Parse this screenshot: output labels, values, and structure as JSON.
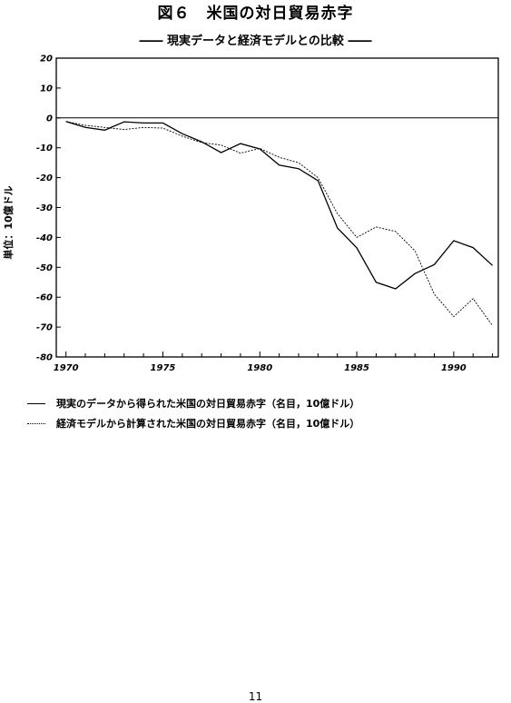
{
  "title": "図６　米国の対日貿易赤字",
  "subtitle": "―― 現実データと経済モデルとの比較 ――",
  "page_number": "11",
  "chart_data": {
    "type": "line",
    "ylabel": "単位：10億ドル",
    "ylim": [
      -80,
      20
    ],
    "yticks": [
      20,
      10,
      0,
      -10,
      -20,
      -30,
      -40,
      -50,
      -60,
      -70,
      -80
    ],
    "xlim": [
      1969.5,
      1992.3
    ],
    "xticks": [
      1970,
      1975,
      1980,
      1985,
      1990
    ],
    "zero_line": true,
    "grid": false,
    "legend": "bottom",
    "x": [
      1970,
      1971,
      1972,
      1973,
      1974,
      1975,
      1976,
      1977,
      1978,
      1979,
      1980,
      1981,
      1982,
      1983,
      1984,
      1985,
      1986,
      1987,
      1988,
      1989,
      1990,
      1991,
      1992
    ],
    "series": [
      {
        "name": "現実のデータから得られた米国の対日貿易赤字（名目，10億ドル）",
        "style": "solid",
        "values": [
          -1.2,
          -3.2,
          -4.1,
          -1.3,
          -1.7,
          -1.7,
          -5.3,
          -8.0,
          -11.6,
          -8.6,
          -10.4,
          -15.8,
          -17.0,
          -21.0,
          -36.8,
          -43.5,
          -55.0,
          -57.2,
          -52.1,
          -49.1,
          -41.1,
          -43.4,
          -49.4
        ]
      },
      {
        "name": "経済モデルから計算された米国の対日貿易赤字（名目，10億ドル）",
        "style": "dotted",
        "values": [
          -1.2,
          -2.5,
          -3.2,
          -3.9,
          -3.2,
          -3.4,
          -6.1,
          -8.3,
          -9.1,
          -11.8,
          -10.2,
          -13.2,
          -15.0,
          -20.0,
          -32.0,
          -40.0,
          -36.5,
          -38.0,
          -44.5,
          -59.0,
          -66.5,
          -60.5,
          -69.5
        ]
      }
    ]
  }
}
